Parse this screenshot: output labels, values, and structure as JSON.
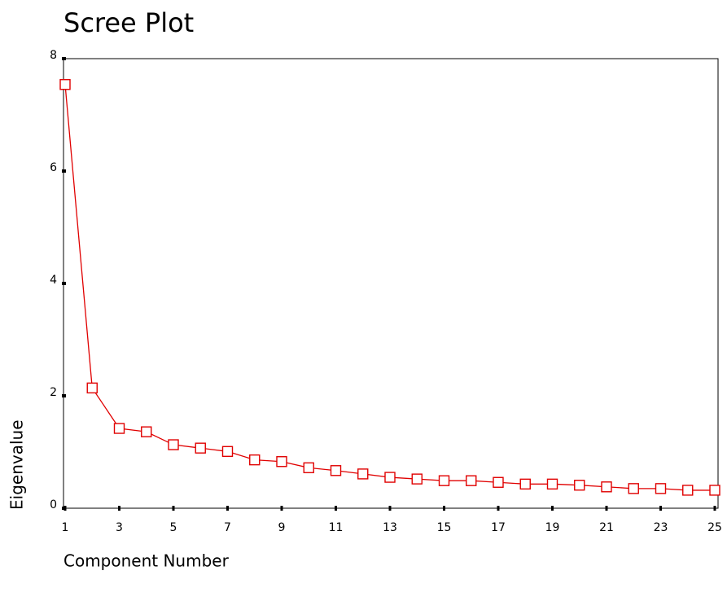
{
  "chart_data": {
    "type": "line",
    "title": "Scree Plot",
    "x_label": "Component Number",
    "y_label": "Eigenvalue",
    "x": [
      1,
      2,
      3,
      4,
      5,
      6,
      7,
      8,
      9,
      10,
      11,
      12,
      13,
      14,
      15,
      16,
      17,
      18,
      19,
      20,
      21,
      22,
      23,
      24,
      25
    ],
    "values": [
      7.54,
      2.14,
      1.42,
      1.36,
      1.13,
      1.07,
      1.01,
      0.86,
      0.83,
      0.72,
      0.67,
      0.61,
      0.55,
      0.52,
      0.49,
      0.49,
      0.46,
      0.43,
      0.43,
      0.41,
      0.38,
      0.35,
      0.35,
      0.32,
      0.32
    ],
    "color": "#e00000",
    "xlim": [
      1,
      25
    ],
    "xticks": [
      1,
      3,
      5,
      7,
      9,
      11,
      13,
      15,
      17,
      19,
      21,
      23,
      25
    ],
    "ylim": [
      0,
      8
    ],
    "yticks": [
      0,
      2,
      4,
      6,
      8
    ]
  }
}
